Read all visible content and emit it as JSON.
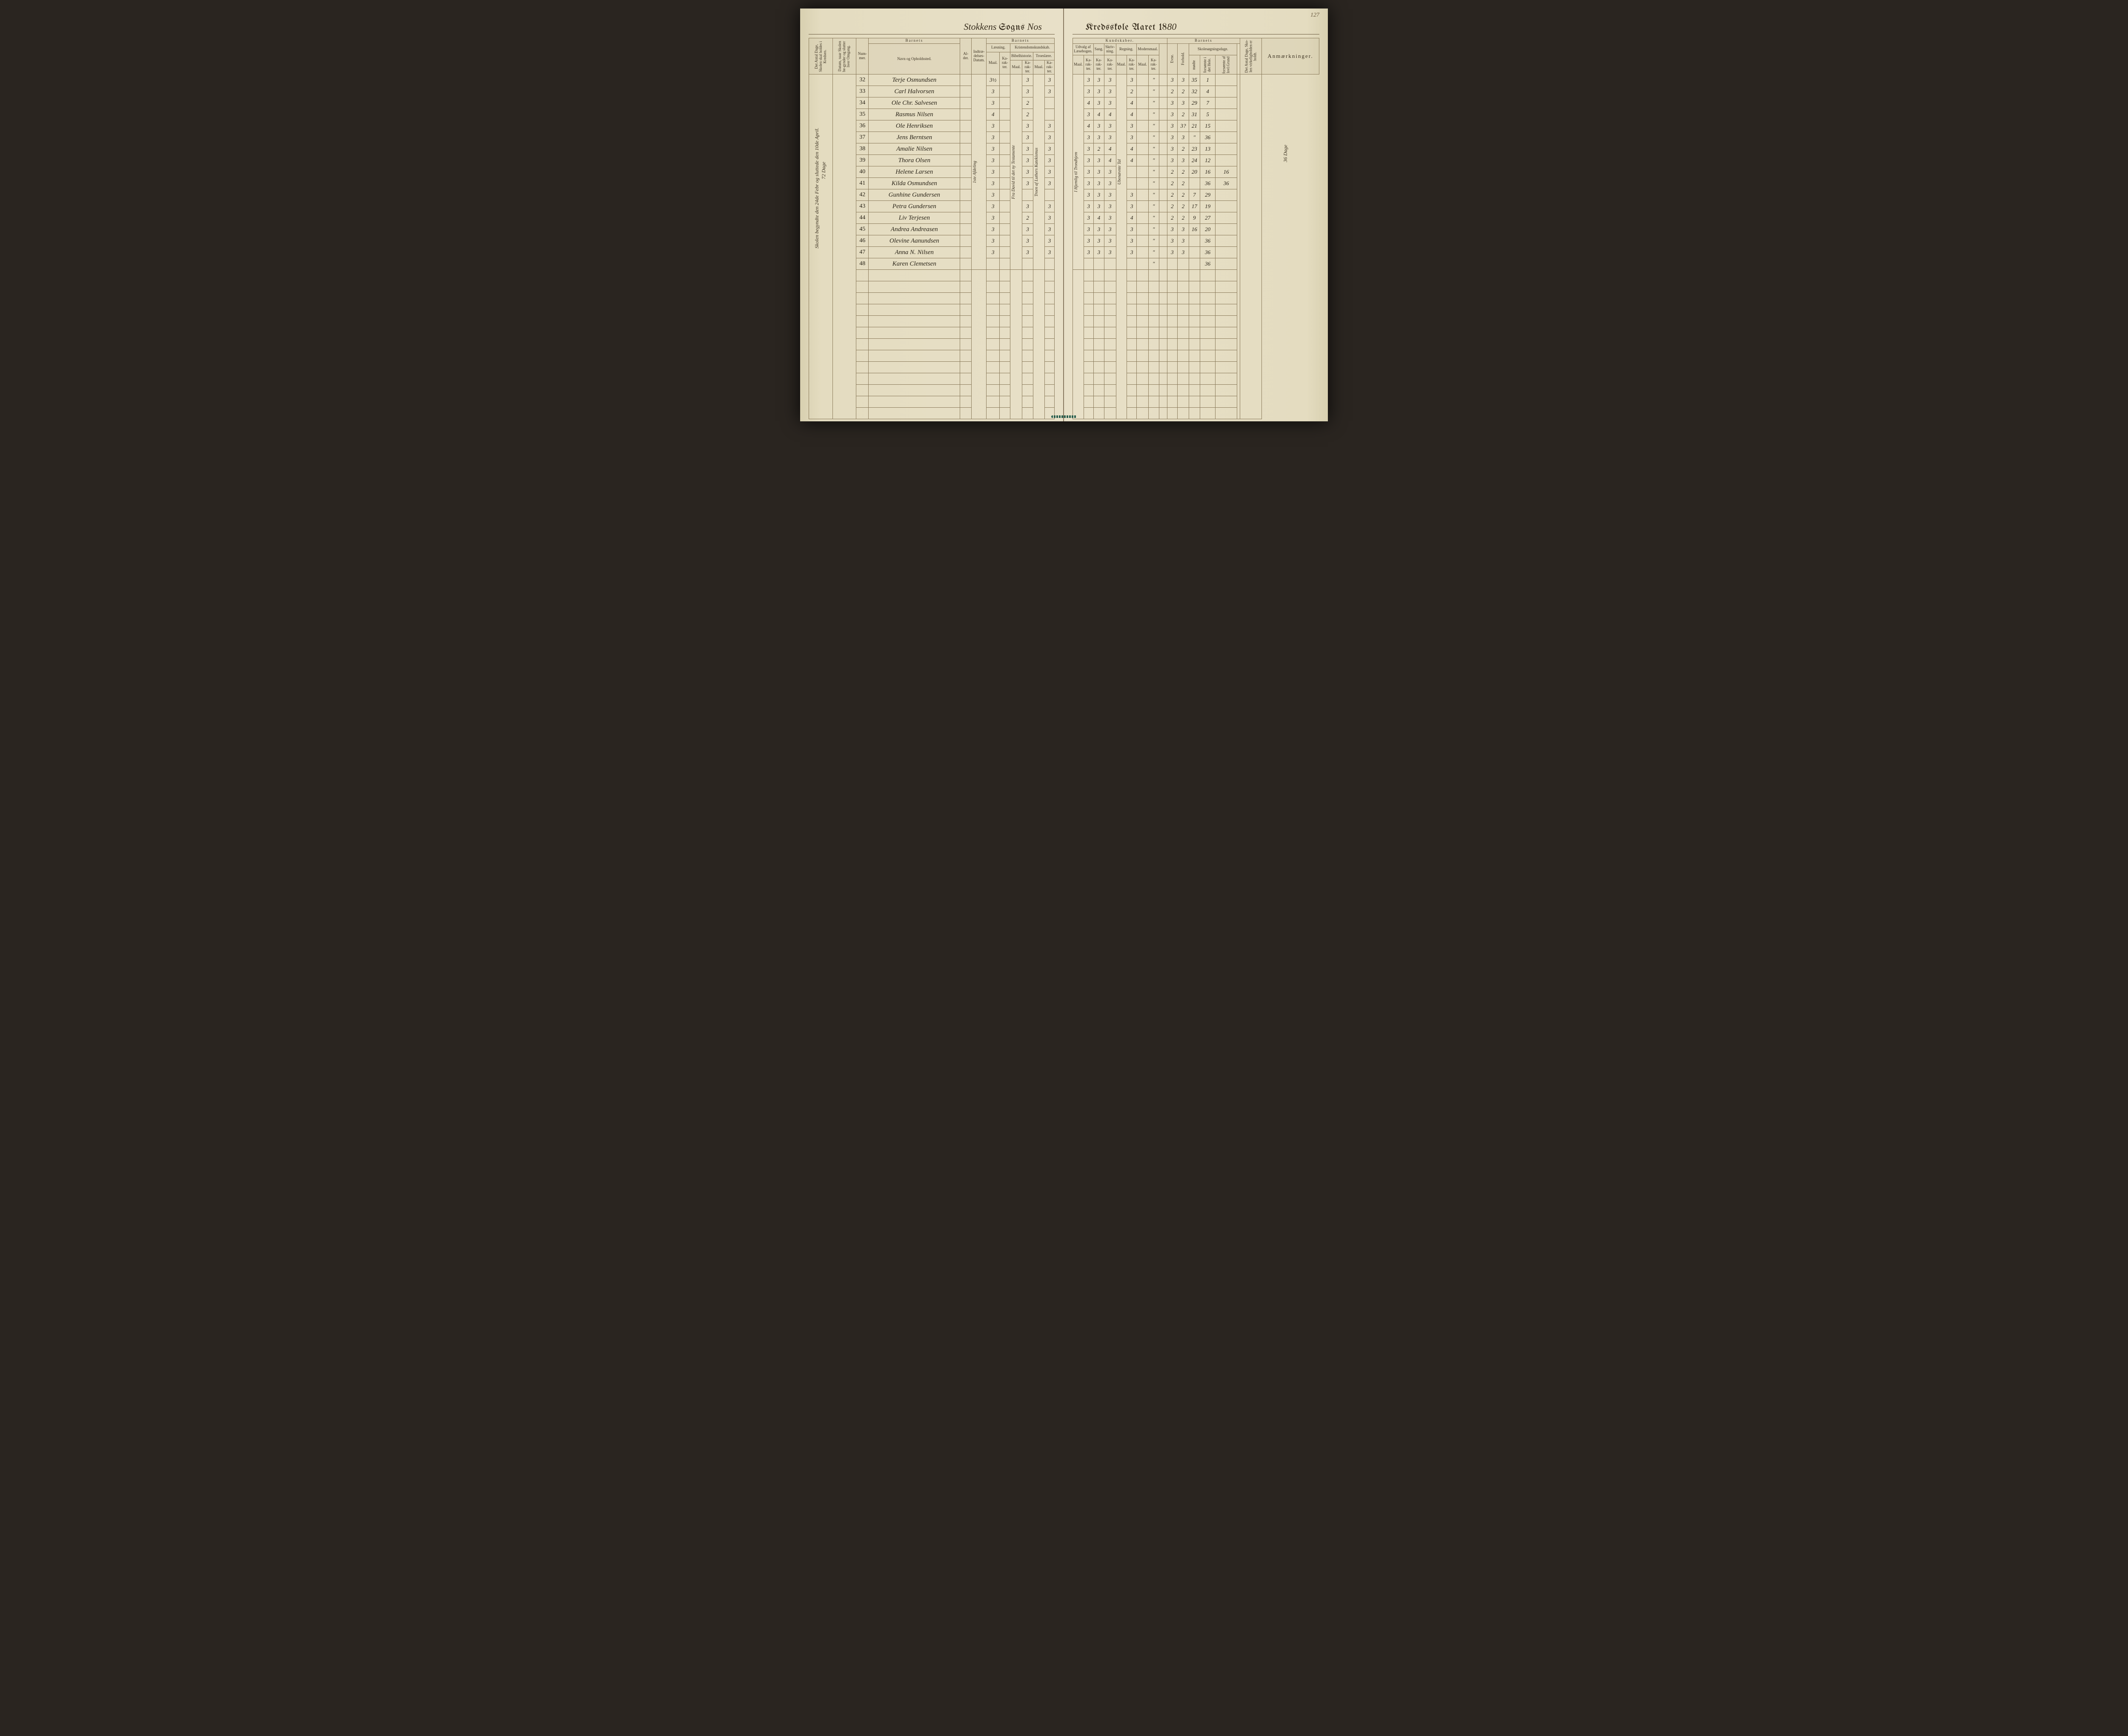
{
  "page_number": "127",
  "title_left": {
    "script1": "Stokkens",
    "printed1": "Sogns",
    "script2": "Nos"
  },
  "title_right": {
    "printed1": "Kredsskole Aaret 18",
    "script1": "80"
  },
  "margin_note_left": "Skolen begyndte den 24de Febr og sluttede den 10de April.",
  "margin_note_top": "72 Dage",
  "margin_note_right": "36 Dage",
  "headers_left": {
    "col_dage": "Det Antal Dage, Skolen skal holdes i Kredsen.",
    "col_datum": "Datum, naar Skolen be-gynder og slutter hver Omgang.",
    "col_nummer": "Num-mer.",
    "group_barnets": "Barnets",
    "col_navn": "Navn og Opholdssted.",
    "col_alder": "Al-der.",
    "col_indtr": "Indtræ-delses-Datum.",
    "group_barnets2": "Barnets",
    "group_laesning": "Læsning.",
    "group_kristendom": "Kristendomskundskab.",
    "col_maal": "Maal.",
    "col_karakter": "Ka-rak-ter.",
    "sub_bibel": "Bibelhistorie.",
    "sub_troes": "Troeslære."
  },
  "headers_right": {
    "group_kundskaber": "Kundskaber.",
    "group_udvalg": "Udvalg af Læsebogen.",
    "group_sang": "Sang.",
    "group_skriv": "Skriv-ning.",
    "group_regning": "Regning.",
    "group_modersmaal": "Modersmaal.",
    "group_barnets": "Barnets",
    "col_maal": "Maal.",
    "col_karakter": "Ka-rak-ter.",
    "col_evne": "Evne.",
    "col_forhold": "Forhold.",
    "group_skole": "Skolesøgningsdage.",
    "col_modte": "mødte",
    "col_forsomte_hele": "forsømte i det Hele.",
    "col_forsomte_grund": "forsømte af lovl.Grund",
    "col_antal_dage": "Det Antal Dage, Sko-len virkeligholden er holdt.",
    "col_anm": "Anmærkninger."
  },
  "vertical_spans": {
    "indledning": "1ste Afdeling",
    "bibel_note": "Fra David til det ny Testamente",
    "troes_note": "Troen af Luthers Katekismus",
    "udvalg_note": "I Hjemlig til Trondhjem",
    "regning_note": "Ubenævnte Tal"
  },
  "rows": [
    {
      "n": "32",
      "name": "Terje Osmundsen",
      "laes_m": "3½",
      "laes_k": "",
      "bib_k": "3",
      "tro_k": "3",
      "udv_k": "3",
      "sang": "3",
      "skr": "3",
      "reg_k": "3",
      "mod_k": "\"",
      "ev": "3",
      "fh": "3",
      "modte": "35",
      "fors": "1",
      "forsg": ""
    },
    {
      "n": "33",
      "name": "Carl Halvorsen",
      "laes_m": "3",
      "laes_k": "",
      "bib_k": "3",
      "tro_k": "3",
      "udv_k": "3",
      "sang": "3",
      "skr": "3",
      "reg_k": "2",
      "mod_k": "\"",
      "ev": "2",
      "fh": "2",
      "modte": "32",
      "fors": "4",
      "forsg": ""
    },
    {
      "n": "34",
      "name": "Ole Chr. Salvesen",
      "laes_m": "3",
      "laes_k": "",
      "bib_k": "2",
      "tro_k": "",
      "udv_k": "4",
      "sang": "3",
      "skr": "3",
      "reg_k": "4",
      "mod_k": "\"",
      "ev": "3",
      "fh": "3",
      "modte": "29",
      "fors": "7",
      "forsg": ""
    },
    {
      "n": "35",
      "name": "Rasmus Nilsen",
      "laes_m": "4",
      "laes_k": "",
      "bib_k": "2",
      "tro_k": "",
      "udv_k": "3",
      "sang": "4",
      "skr": "4",
      "reg_k": "4",
      "mod_k": "\"",
      "ev": "3",
      "fh": "2",
      "modte": "31",
      "fors": "5",
      "forsg": ""
    },
    {
      "n": "36",
      "name": "Ole Henriksen",
      "laes_m": "3",
      "laes_k": "",
      "bib_k": "3",
      "tro_k": "3",
      "udv_k": "4",
      "sang": "3",
      "skr": "3",
      "reg_k": "3",
      "mod_k": "\"",
      "ev": "3",
      "fh": "3?",
      "modte": "21",
      "fors": "15",
      "forsg": ""
    },
    {
      "n": "37",
      "name": "Jens Berntsen",
      "laes_m": "3",
      "laes_k": "",
      "bib_k": "3",
      "tro_k": "3",
      "udv_k": "3",
      "sang": "3",
      "skr": "3",
      "reg_k": "3",
      "mod_k": "\"",
      "ev": "3",
      "fh": "3",
      "modte": "\"",
      "fors": "36",
      "forsg": ""
    },
    {
      "n": "38",
      "name": "Amalie Nilsen",
      "laes_m": "3",
      "laes_k": "",
      "bib_k": "3",
      "tro_k": "3",
      "udv_k": "3",
      "sang": "2",
      "skr": "4",
      "reg_k": "4",
      "mod_k": "\"",
      "ev": "3",
      "fh": "2",
      "modte": "23",
      "fors": "13",
      "forsg": ""
    },
    {
      "n": "39",
      "name": "Thora Olsen",
      "laes_m": "3",
      "laes_k": "",
      "bib_k": "3",
      "tro_k": "3",
      "udv_k": "3",
      "sang": "3",
      "skr": "4",
      "reg_k": "4",
      "mod_k": "\"",
      "ev": "3",
      "fh": "3",
      "modte": "24",
      "fors": "12",
      "forsg": ""
    },
    {
      "n": "40",
      "name": "Helene Larsen",
      "laes_m": "3",
      "laes_k": "",
      "bib_k": "3",
      "tro_k": "3",
      "udv_k": "3",
      "sang": "3",
      "skr": "3",
      "reg_k": "",
      "mod_k": "\"",
      "ev": "2",
      "fh": "2",
      "modte": "20",
      "fors": "16",
      "forsg": "16"
    },
    {
      "n": "41",
      "name": "Kilda Osmundsen",
      "laes_m": "3",
      "laes_k": "",
      "bib_k": "3",
      "tro_k": "3",
      "udv_k": "3",
      "sang": "3",
      "skr": "3",
      "reg_k": "",
      "mod_k": "\"",
      "ev": "2",
      "fh": "2",
      "modte": "",
      "fors": "36",
      "forsg": "36"
    },
    {
      "n": "42",
      "name": "Gunhine Gundersen",
      "laes_m": "3",
      "laes_k": "",
      "bib_k": "",
      "tro_k": "",
      "udv_k": "3",
      "sang": "3",
      "skr": "3",
      "reg_k": "3",
      "mod_k": "\"",
      "ev": "2",
      "fh": "2",
      "modte": "7",
      "fors": "29",
      "forsg": ""
    },
    {
      "n": "43",
      "name": "Petra Gundersen",
      "laes_m": "3",
      "laes_k": "",
      "bib_k": "3",
      "tro_k": "3",
      "udv_k": "3",
      "sang": "3",
      "skr": "3",
      "reg_k": "3",
      "mod_k": "\"",
      "ev": "2",
      "fh": "2",
      "modte": "17",
      "fors": "19",
      "forsg": ""
    },
    {
      "n": "44",
      "name": "Liv Terjesen",
      "laes_m": "3",
      "laes_k": "",
      "bib_k": "2",
      "tro_k": "3",
      "udv_k": "3",
      "sang": "4",
      "skr": "3",
      "reg_k": "4",
      "mod_k": "\"",
      "ev": "2",
      "fh": "2",
      "modte": "9",
      "fors": "27",
      "forsg": ""
    },
    {
      "n": "45",
      "name": "Andrea Andreasen",
      "laes_m": "3",
      "laes_k": "",
      "bib_k": "3",
      "tro_k": "3",
      "udv_k": "3",
      "sang": "3",
      "skr": "3",
      "reg_k": "3",
      "mod_k": "\"",
      "ev": "3",
      "fh": "3",
      "modte": "16",
      "fors": "20",
      "forsg": ""
    },
    {
      "n": "46",
      "name": "Olevine Aanundsen",
      "laes_m": "3",
      "laes_k": "",
      "bib_k": "3",
      "tro_k": "3",
      "udv_k": "3",
      "sang": "3",
      "skr": "3",
      "reg_k": "3",
      "mod_k": "\"",
      "ev": "3",
      "fh": "3",
      "modte": "",
      "fors": "36",
      "forsg": ""
    },
    {
      "n": "47",
      "name": "Anna N. Nilsen",
      "laes_m": "3",
      "laes_k": "",
      "bib_k": "3",
      "tro_k": "3",
      "udv_k": "3",
      "sang": "3",
      "skr": "3",
      "reg_k": "3",
      "mod_k": "\"",
      "ev": "3",
      "fh": "3",
      "modte": "",
      "fors": "36",
      "forsg": ""
    },
    {
      "n": "48",
      "name": "Karen Clemetsen",
      "laes_m": "",
      "laes_k": "",
      "bib_k": "",
      "tro_k": "",
      "udv_k": "",
      "sang": "",
      "skr": "",
      "reg_k": "",
      "mod_k": "\"",
      "ev": "",
      "fh": "",
      "modte": "",
      "fors": "36",
      "forsg": ""
    }
  ],
  "empty_rows_count": 13,
  "colors": {
    "page_bg": "#e8e0c8",
    "ink": "#2a2418",
    "rule": "#8a7a5a",
    "book_edge": "#2a2520"
  }
}
